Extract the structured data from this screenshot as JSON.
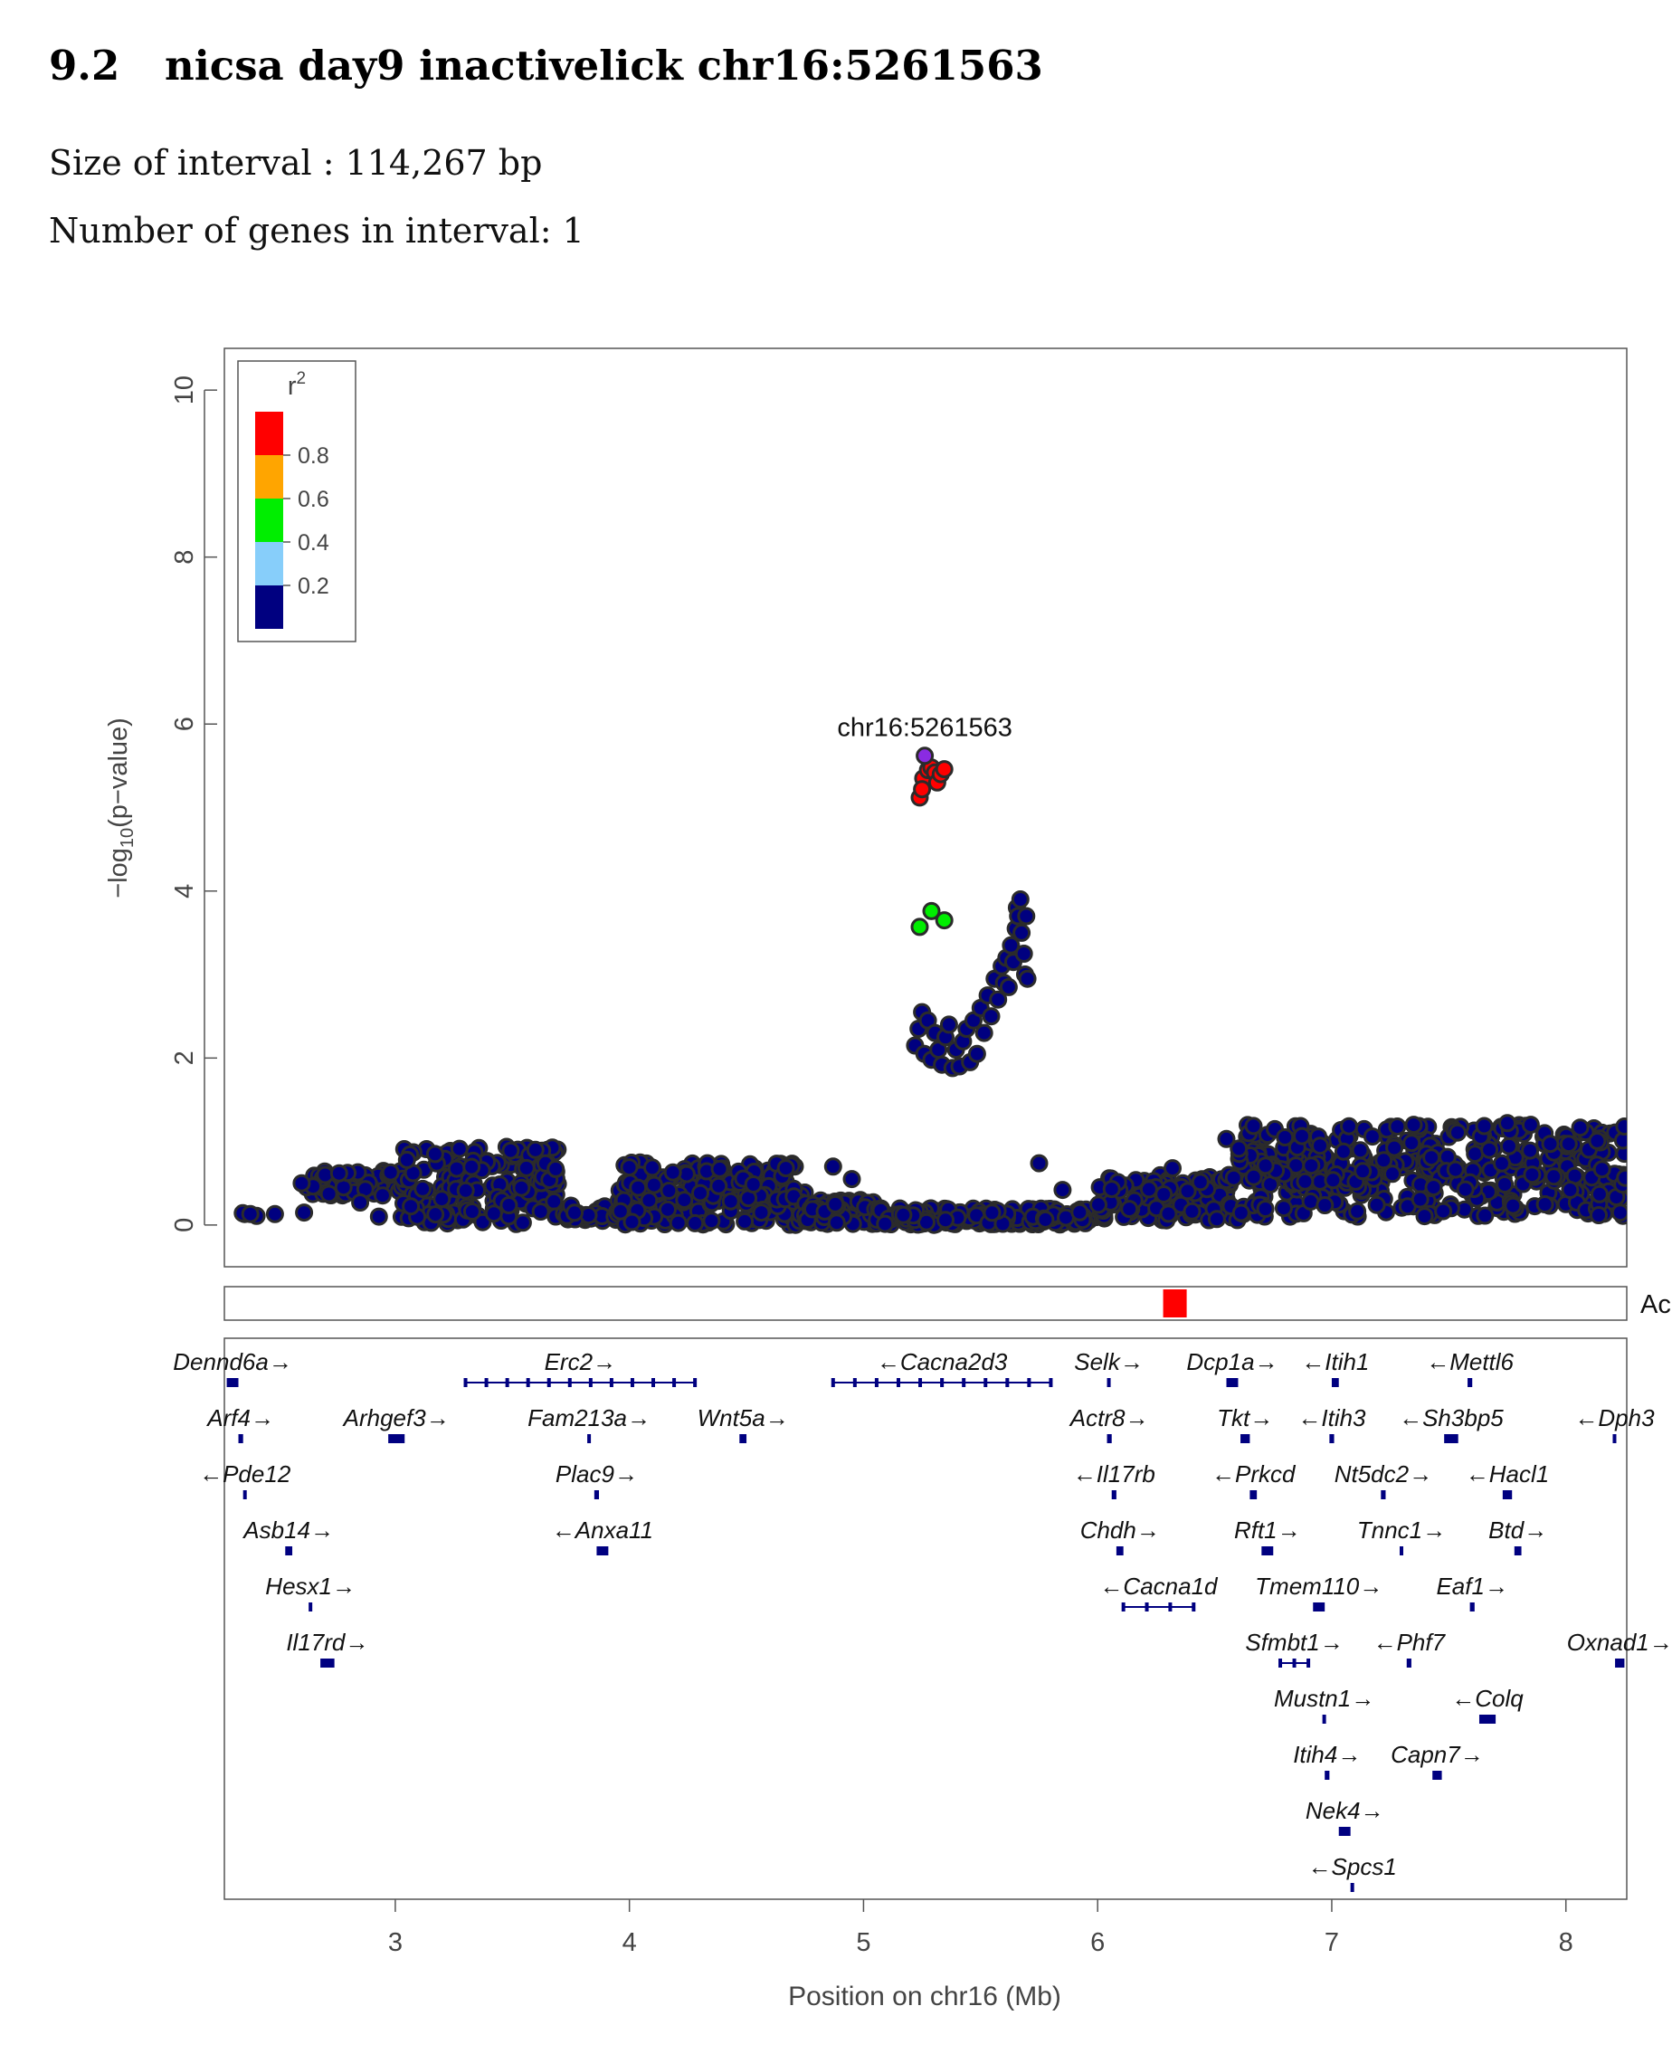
{
  "header": {
    "section_number": "9.2",
    "title": "nicsa day9 inactivelick chr16:5261563",
    "interval_size_text": "Size of interval : 114,267 bp",
    "gene_count_text": "Number of genes in interval: 1"
  },
  "chart_data": {
    "type": "scatter",
    "title": "",
    "xlabel": "Position on chr16 (Mb)",
    "ylabel": "-log10(p-value)",
    "xlim": [
      2.27,
      8.26
    ],
    "ylim": [
      -0.5,
      10.5
    ],
    "x_ticks": [
      3,
      4,
      5,
      6,
      7,
      8
    ],
    "y_ticks": [
      0,
      2,
      4,
      6,
      8,
      10
    ],
    "grid": false,
    "legend": {
      "placement": "top-left",
      "title": "r2",
      "bins": [
        {
          "range": [
            0.8,
            1.0
          ],
          "color": "#ff0000"
        },
        {
          "range": [
            0.6,
            0.8
          ],
          "color": "#ffa500"
        },
        {
          "range": [
            0.4,
            0.6
          ],
          "color": "#00ee00"
        },
        {
          "range": [
            0.2,
            0.4
          ],
          "color": "#87cefa"
        },
        {
          "range": [
            0.0,
            0.2
          ],
          "color": "#000080"
        }
      ],
      "tick_labels": [
        "0.8",
        "0.6",
        "0.4",
        "0.2"
      ]
    },
    "lead_snp": {
      "label": "chr16:5261563",
      "x": 5.261563,
      "y": 5.62,
      "color": "#8a2be2"
    },
    "series": [
      {
        "r2_bin": "0.8-1.0",
        "color": "#ff0000",
        "points": [
          [
            5.24,
            5.12
          ],
          [
            5.255,
            5.35
          ],
          [
            5.275,
            5.45
          ],
          [
            5.29,
            5.48
          ],
          [
            5.305,
            5.42
          ],
          [
            5.315,
            5.3
          ],
          [
            5.33,
            5.4
          ],
          [
            5.345,
            5.46
          ],
          [
            5.25,
            5.22
          ]
        ]
      },
      {
        "r2_bin": "0.4-0.6",
        "color": "#00ee00",
        "points": [
          [
            5.24,
            3.57
          ],
          [
            5.29,
            3.76
          ],
          [
            5.345,
            3.65
          ]
        ]
      },
      {
        "r2_bin": "0.0-0.2",
        "color": "#000080",
        "bands": [
          {
            "x_range": [
              2.32,
              2.62
            ],
            "y_range": [
              0.1,
              0.15
            ],
            "count": 6
          },
          {
            "x_range": [
              2.62,
              3.05
            ],
            "y_range": [
              0.35,
              0.65
            ],
            "count": 60
          },
          {
            "x_range": [
              3.0,
              3.7
            ],
            "y_range": [
              0.0,
              0.95
            ],
            "count": 160
          },
          {
            "x_range": [
              3.7,
              3.95
            ],
            "y_range": [
              0.05,
              0.25
            ],
            "count": 30
          },
          {
            "x_range": [
              3.95,
              4.75
            ],
            "y_range": [
              0.0,
              0.75
            ],
            "count": 230
          },
          {
            "x_range": [
              4.75,
              5.05
            ],
            "y_range": [
              0.0,
              0.3
            ],
            "count": 70
          },
          {
            "x_range": [
              5.05,
              6.0
            ],
            "y_range": [
              0.0,
              0.2
            ],
            "count": 180
          },
          {
            "x_range": [
              6.0,
              6.6
            ],
            "y_range": [
              0.05,
              0.6
            ],
            "count": 120
          },
          {
            "x_range": [
              6.6,
              8.26
            ],
            "y_range": [
              0.1,
              1.2
            ],
            "count": 420
          }
        ],
        "points": [
          [
            2.6,
            0.5
          ],
          [
            2.7,
            0.6
          ],
          [
            2.76,
            0.62
          ],
          [
            2.85,
            0.27
          ],
          [
            2.93,
            0.1
          ],
          [
            2.98,
            0.63
          ],
          [
            3.05,
            0.78
          ],
          [
            3.17,
            0.85
          ],
          [
            4.87,
            0.7
          ],
          [
            4.95,
            0.55
          ],
          [
            5.17,
            0.12
          ],
          [
            5.35,
            0.06
          ],
          [
            5.75,
            0.74
          ],
          [
            5.85,
            0.42
          ],
          [
            6.32,
            0.68
          ],
          [
            6.55,
            1.03
          ],
          [
            6.8,
            1.05
          ],
          [
            6.95,
            0.95
          ],
          [
            7.05,
            0.88
          ],
          [
            7.28,
            1.18
          ],
          [
            7.35,
            1.2
          ],
          [
            7.75,
            1.22
          ],
          [
            7.85,
            1.2
          ],
          [
            8.25,
            1.18
          ],
          [
            5.22,
            2.15
          ],
          [
            5.235,
            2.35
          ],
          [
            5.25,
            2.55
          ],
          [
            5.26,
            2.05
          ],
          [
            5.275,
            2.45
          ],
          [
            5.29,
            1.98
          ],
          [
            5.305,
            2.3
          ],
          [
            5.32,
            2.1
          ],
          [
            5.335,
            1.92
          ],
          [
            5.35,
            2.25
          ],
          [
            5.365,
            2.4
          ],
          [
            5.38,
            1.88
          ],
          [
            5.395,
            2.1
          ],
          [
            5.41,
            1.9
          ],
          [
            5.425,
            2.2
          ],
          [
            5.44,
            2.35
          ],
          [
            5.455,
            1.95
          ],
          [
            5.47,
            2.45
          ],
          [
            5.485,
            2.05
          ],
          [
            5.5,
            2.6
          ],
          [
            5.515,
            2.3
          ],
          [
            5.53,
            2.75
          ],
          [
            5.545,
            2.5
          ],
          [
            5.56,
            2.95
          ],
          [
            5.575,
            2.7
          ],
          [
            5.59,
            3.1
          ],
          [
            5.6,
            2.9
          ],
          [
            5.61,
            3.2
          ],
          [
            5.62,
            2.85
          ],
          [
            5.63,
            3.35
          ],
          [
            5.64,
            3.15
          ],
          [
            5.65,
            3.55
          ],
          [
            5.655,
            3.8
          ],
          [
            5.66,
            3.7
          ],
          [
            5.67,
            3.9
          ],
          [
            5.675,
            3.5
          ],
          [
            5.685,
            3.25
          ],
          [
            5.69,
            3.0
          ],
          [
            5.7,
            2.95
          ],
          [
            5.695,
            3.7
          ]
        ]
      }
    ],
    "recombination_track": {
      "marker_x": 6.33,
      "marker_color": "#ff0000",
      "label": "Ac"
    },
    "genes": [
      {
        "name": "Dennd6a",
        "strand": "+",
        "start": 2.28,
        "end": 2.33,
        "row": 0
      },
      {
        "name": "Erc2",
        "strand": "+",
        "start": 3.3,
        "end": 4.28,
        "row": 0
      },
      {
        "name": "Cacna2d3",
        "strand": "-",
        "start": 4.87,
        "end": 5.8,
        "row": 0
      },
      {
        "name": "Selk",
        "strand": "+",
        "start": 6.04,
        "end": 6.05,
        "row": 0
      },
      {
        "name": "Dcp1a",
        "strand": "+",
        "start": 6.55,
        "end": 6.6,
        "row": 0
      },
      {
        "name": "Itih1",
        "strand": "-",
        "start": 7.0,
        "end": 7.03,
        "row": 0
      },
      {
        "name": "Mettl6",
        "strand": "-",
        "start": 7.58,
        "end": 7.6,
        "row": 0
      },
      {
        "name": "Arf4",
        "strand": "+",
        "start": 2.33,
        "end": 2.35,
        "row": 1
      },
      {
        "name": "Arhgef3",
        "strand": "+",
        "start": 2.97,
        "end": 3.04,
        "row": 1
      },
      {
        "name": "Fam213a",
        "strand": "+",
        "start": 3.82,
        "end": 3.83,
        "row": 1
      },
      {
        "name": "Wnt5a",
        "strand": "+",
        "start": 4.47,
        "end": 4.5,
        "row": 1
      },
      {
        "name": "Actr8",
        "strand": "+",
        "start": 6.04,
        "end": 6.06,
        "row": 1
      },
      {
        "name": "Tkt",
        "strand": "+",
        "start": 6.61,
        "end": 6.65,
        "row": 1
      },
      {
        "name": "Itih3",
        "strand": "-",
        "start": 6.99,
        "end": 7.01,
        "row": 1
      },
      {
        "name": "Sh3bp5",
        "strand": "-",
        "start": 7.48,
        "end": 7.54,
        "row": 1
      },
      {
        "name": "Dph3",
        "strand": "-",
        "start": 8.2,
        "end": 8.21,
        "row": 1
      },
      {
        "name": "Pde12",
        "strand": "-",
        "start": 2.35,
        "end": 2.36,
        "row": 2
      },
      {
        "name": "Plac9",
        "strand": "+",
        "start": 3.85,
        "end": 3.87,
        "row": 2
      },
      {
        "name": "Il17rb",
        "strand": "-",
        "start": 6.06,
        "end": 6.08,
        "row": 2
      },
      {
        "name": "Prkcd",
        "strand": "-",
        "start": 6.65,
        "end": 6.68,
        "row": 2
      },
      {
        "name": "Nt5dc2",
        "strand": "+",
        "start": 7.21,
        "end": 7.23,
        "row": 2
      },
      {
        "name": "Hacl1",
        "strand": "-",
        "start": 7.73,
        "end": 7.77,
        "row": 2
      },
      {
        "name": "Asb14",
        "strand": "+",
        "start": 2.53,
        "end": 2.56,
        "row": 3
      },
      {
        "name": "Anxa11",
        "strand": "-",
        "start": 3.86,
        "end": 3.91,
        "row": 3
      },
      {
        "name": "Chdh",
        "strand": "+",
        "start": 6.08,
        "end": 6.11,
        "row": 3
      },
      {
        "name": "Rft1",
        "strand": "+",
        "start": 6.7,
        "end": 6.75,
        "row": 3
      },
      {
        "name": "Tnnc1",
        "strand": "+",
        "start": 7.29,
        "end": 7.3,
        "row": 3
      },
      {
        "name": "Btd",
        "strand": "+",
        "start": 7.78,
        "end": 7.81,
        "row": 3
      },
      {
        "name": "Hesx1",
        "strand": "+",
        "start": 2.63,
        "end": 2.64,
        "row": 4
      },
      {
        "name": "Cacna1d",
        "strand": "-",
        "start": 6.11,
        "end": 6.41,
        "row": 4
      },
      {
        "name": "Tmem110",
        "strand": "+",
        "start": 6.92,
        "end": 6.97,
        "row": 4
      },
      {
        "name": "Eaf1",
        "strand": "+",
        "start": 7.59,
        "end": 7.61,
        "row": 4
      },
      {
        "name": "Il17rd",
        "strand": "+",
        "start": 2.68,
        "end": 2.74,
        "row": 5
      },
      {
        "name": "Sfmbt1",
        "strand": "+",
        "start": 6.78,
        "end": 6.9,
        "row": 5
      },
      {
        "name": "Phf7",
        "strand": "-",
        "start": 7.32,
        "end": 7.34,
        "row": 5
      },
      {
        "name": "Oxnad1",
        "strand": "+",
        "start": 8.21,
        "end": 8.25,
        "row": 5
      },
      {
        "name": "Mustn1",
        "strand": "+",
        "start": 6.96,
        "end": 6.97,
        "row": 6
      },
      {
        "name": "Colq",
        "strand": "-",
        "start": 7.63,
        "end": 7.7,
        "row": 6
      },
      {
        "name": "Itih4",
        "strand": "+",
        "start": 6.97,
        "end": 6.99,
        "row": 7
      },
      {
        "name": "Capn7",
        "strand": "+",
        "start": 7.43,
        "end": 7.47,
        "row": 7
      },
      {
        "name": "Nek4",
        "strand": "+",
        "start": 7.03,
        "end": 7.08,
        "row": 8
      },
      {
        "name": "Spcs1",
        "strand": "-",
        "start": 7.08,
        "end": 7.09,
        "row": 9
      }
    ]
  }
}
